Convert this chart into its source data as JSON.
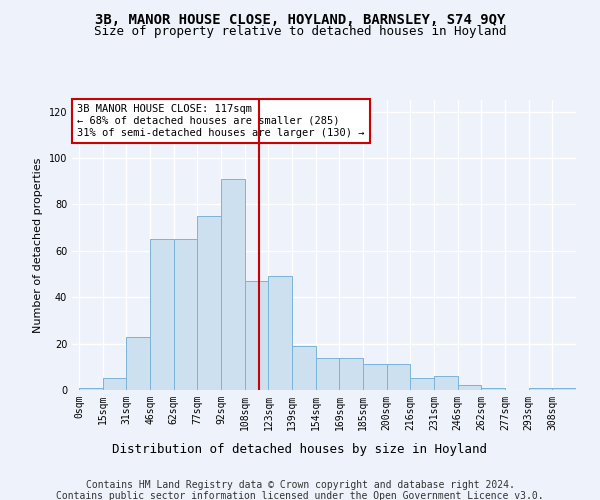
{
  "title": "3B, MANOR HOUSE CLOSE, HOYLAND, BARNSLEY, S74 9QY",
  "subtitle": "Size of property relative to detached houses in Hoyland",
  "xlabel": "Distribution of detached houses by size in Hoyland",
  "ylabel": "Number of detached properties",
  "footer_line1": "Contains HM Land Registry data © Crown copyright and database right 2024.",
  "footer_line2": "Contains public sector information licensed under the Open Government Licence v3.0.",
  "bin_labels": [
    "0sqm",
    "15sqm",
    "31sqm",
    "46sqm",
    "62sqm",
    "77sqm",
    "92sqm",
    "108sqm",
    "123sqm",
    "139sqm",
    "154sqm",
    "169sqm",
    "185sqm",
    "200sqm",
    "216sqm",
    "231sqm",
    "246sqm",
    "262sqm",
    "277sqm",
    "293sqm",
    "308sqm"
  ],
  "bar_heights": [
    1,
    5,
    23,
    65,
    65,
    75,
    91,
    47,
    49,
    19,
    14,
    14,
    11,
    11,
    5,
    6,
    2,
    1,
    0,
    1,
    1
  ],
  "bar_color": "#cce0f0",
  "bar_edge_color": "#7ab4d8",
  "annotation_text": "3B MANOR HOUSE CLOSE: 117sqm\n← 68% of detached houses are smaller (285)\n31% of semi-detached houses are larger (130) →",
  "annotation_box_color": "#ffffff",
  "annotation_box_edge_color": "#cc0000",
  "vline_color": "#cc0000",
  "ylim": [
    0,
    125
  ],
  "yticks": [
    0,
    20,
    40,
    60,
    80,
    100,
    120
  ],
  "background_color": "#eef2fa",
  "grid_color": "#ffffff",
  "title_fontsize": 10,
  "subtitle_fontsize": 9,
  "xlabel_fontsize": 9,
  "ylabel_fontsize": 8,
  "tick_fontsize": 7,
  "footer_fontsize": 7,
  "annotation_fontsize": 7.5
}
